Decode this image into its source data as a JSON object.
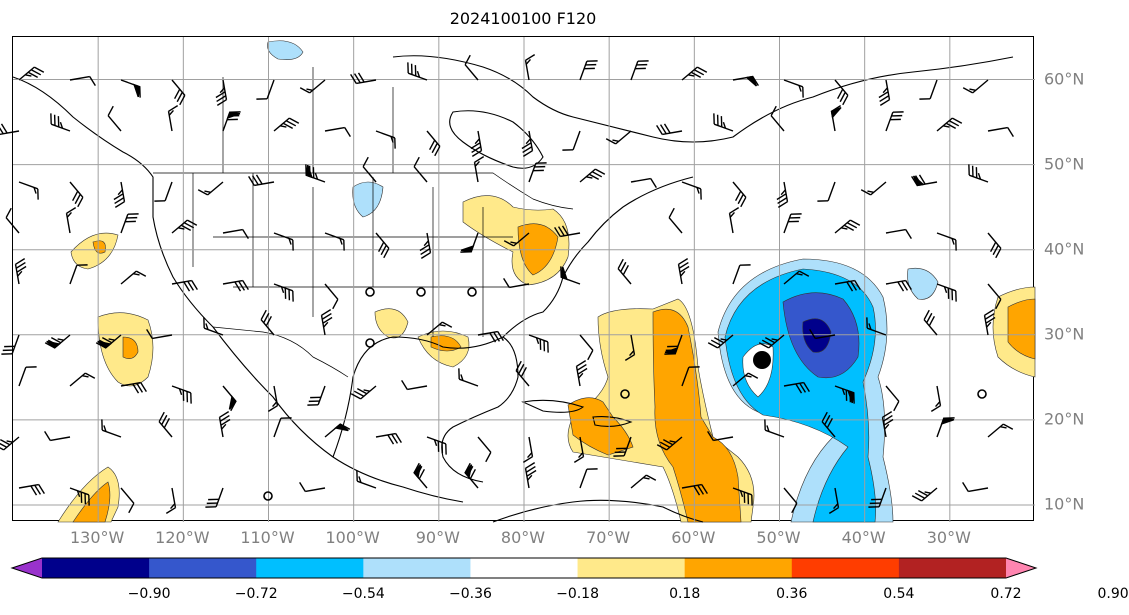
{
  "title": "2024100100 F120",
  "map": {
    "lon_range": [
      -140,
      -20
    ],
    "lat_range": [
      8,
      65
    ],
    "grid": true,
    "cyclone_marker": "filled-dot",
    "lon_labels": [
      {
        "lon": -130,
        "text": "130°W"
      },
      {
        "lon": -120,
        "text": "120°W"
      },
      {
        "lon": -110,
        "text": "110°W"
      },
      {
        "lon": -100,
        "text": "100°W"
      },
      {
        "lon": -90,
        "text": "90°W"
      },
      {
        "lon": -80,
        "text": "80°W"
      },
      {
        "lon": -70,
        "text": "70°W"
      },
      {
        "lon": -60,
        "text": "60°W"
      },
      {
        "lon": -50,
        "text": "50°W"
      },
      {
        "lon": -40,
        "text": "40°W"
      },
      {
        "lon": -30,
        "text": "30°W"
      }
    ],
    "lat_labels": [
      {
        "lat": 60,
        "text": "60°N"
      },
      {
        "lat": 50,
        "text": "50°N"
      },
      {
        "lat": 40,
        "text": "40°N"
      },
      {
        "lat": 30,
        "text": "30°N"
      },
      {
        "lat": 20,
        "text": "20°N"
      },
      {
        "lat": 10,
        "text": "10°N"
      }
    ]
  },
  "colorbar": {
    "colors": [
      "#9932cc",
      "#00008b",
      "#3557cc",
      "#00bfff",
      "#aee0fb",
      "#ffffff",
      "#ffe98a",
      "#ffa500",
      "#ff3d00",
      "#b22222",
      "#ff85b0"
    ],
    "ticks": [
      "−0.90",
      "−0.72",
      "−0.54",
      "−0.36",
      "−0.18",
      "0.18",
      "0.36",
      "0.54",
      "0.72",
      "0.90"
    ]
  }
}
